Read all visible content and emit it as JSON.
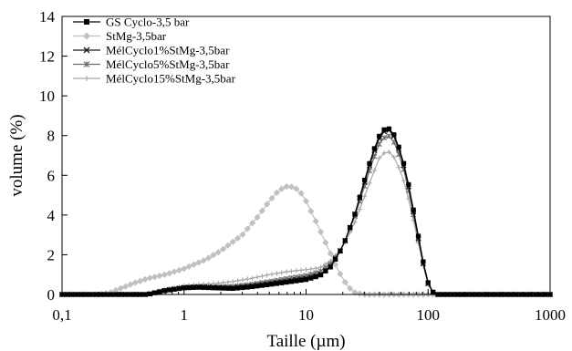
{
  "chart_data": {
    "type": "line",
    "title": "",
    "xlabel": "Taille (µm)",
    "ylabel": "volume (%)",
    "x_scale": "log",
    "xlim": [
      0.1,
      1000
    ],
    "ylim": [
      0,
      14
    ],
    "x_ticks": [
      0.1,
      1,
      10,
      100,
      1000
    ],
    "x_tick_labels": [
      "0,1",
      "1",
      "10",
      "100",
      "1000"
    ],
    "y_ticks": [
      0,
      2,
      4,
      6,
      8,
      10,
      12,
      14
    ],
    "y_tick_labels": [
      "0",
      "2",
      "4",
      "6",
      "8",
      "10",
      "12",
      "14"
    ],
    "grid": false,
    "legend_position": "top-left",
    "series": [
      {
        "name": "GS Cyclo-3,5 bar",
        "color": "#000000",
        "marker": "square",
        "points": [
          [
            0.1,
            0
          ],
          [
            0.5,
            0
          ],
          [
            0.7,
            0.2
          ],
          [
            1,
            0.33
          ],
          [
            1.3,
            0.36
          ],
          [
            1.8,
            0.33
          ],
          [
            2.5,
            0.3
          ],
          [
            3.5,
            0.38
          ],
          [
            5,
            0.5
          ],
          [
            7,
            0.62
          ],
          [
            10,
            0.75
          ],
          [
            13,
            0.95
          ],
          [
            16,
            1.4
          ],
          [
            20,
            2.4
          ],
          [
            25,
            4.0
          ],
          [
            30,
            5.7
          ],
          [
            35,
            7.1
          ],
          [
            40,
            8.0
          ],
          [
            45,
            8.4
          ],
          [
            50,
            8.3
          ],
          [
            55,
            7.8
          ],
          [
            62,
            6.8
          ],
          [
            70,
            5.4
          ],
          [
            80,
            3.5
          ],
          [
            90,
            1.8
          ],
          [
            100,
            0.6
          ],
          [
            110,
            0.1
          ],
          [
            120,
            0
          ],
          [
            200,
            0
          ],
          [
            1000,
            0
          ]
        ]
      },
      {
        "name": "StMg-3,5bar",
        "color": "#c0c0c0",
        "marker": "diamond",
        "points": [
          [
            0.1,
            0
          ],
          [
            0.2,
            0
          ],
          [
            0.25,
            0.1
          ],
          [
            0.3,
            0.3
          ],
          [
            0.4,
            0.6
          ],
          [
            0.5,
            0.8
          ],
          [
            0.7,
            1.0
          ],
          [
            1,
            1.3
          ],
          [
            1.5,
            1.75
          ],
          [
            2,
            2.2
          ],
          [
            3,
            3.0
          ],
          [
            4,
            3.9
          ],
          [
            5,
            4.7
          ],
          [
            6,
            5.25
          ],
          [
            7,
            5.45
          ],
          [
            8,
            5.4
          ],
          [
            9,
            5.15
          ],
          [
            10,
            4.7
          ],
          [
            12,
            3.7
          ],
          [
            14,
            2.8
          ],
          [
            16,
            2.0
          ],
          [
            18,
            1.3
          ],
          [
            20,
            0.8
          ],
          [
            22,
            0.4
          ],
          [
            25,
            0.1
          ],
          [
            30,
            0
          ],
          [
            100,
            0
          ],
          [
            1000,
            0
          ]
        ]
      },
      {
        "name": "MélCyclo1%StMg-3,5bar",
        "color": "#1a1a1a",
        "marker": "x",
        "points": [
          [
            0.1,
            0
          ],
          [
            0.5,
            0
          ],
          [
            0.7,
            0.2
          ],
          [
            1,
            0.35
          ],
          [
            1.3,
            0.38
          ],
          [
            1.8,
            0.35
          ],
          [
            2.5,
            0.33
          ],
          [
            3.5,
            0.42
          ],
          [
            5,
            0.55
          ],
          [
            7,
            0.68
          ],
          [
            10,
            0.82
          ],
          [
            13,
            1.0
          ],
          [
            16,
            1.45
          ],
          [
            20,
            2.4
          ],
          [
            25,
            4.0
          ],
          [
            30,
            5.6
          ],
          [
            35,
            7.0
          ],
          [
            40,
            7.9
          ],
          [
            45,
            8.3
          ],
          [
            50,
            8.25
          ],
          [
            55,
            7.7
          ],
          [
            62,
            6.7
          ],
          [
            70,
            5.3
          ],
          [
            80,
            3.4
          ],
          [
            90,
            1.7
          ],
          [
            100,
            0.55
          ],
          [
            110,
            0.1
          ],
          [
            120,
            0
          ],
          [
            200,
            0
          ],
          [
            1000,
            0
          ]
        ]
      },
      {
        "name": "MélCyclo5%StMg-3,5bar",
        "color": "#6e6e6e",
        "marker": "star",
        "points": [
          [
            0.1,
            0
          ],
          [
            0.5,
            0
          ],
          [
            0.7,
            0.2
          ],
          [
            1,
            0.35
          ],
          [
            1.3,
            0.4
          ],
          [
            1.8,
            0.38
          ],
          [
            2.5,
            0.4
          ],
          [
            3.5,
            0.5
          ],
          [
            5,
            0.65
          ],
          [
            7,
            0.8
          ],
          [
            10,
            0.95
          ],
          [
            13,
            1.15
          ],
          [
            16,
            1.55
          ],
          [
            20,
            2.4
          ],
          [
            25,
            3.9
          ],
          [
            30,
            5.4
          ],
          [
            35,
            6.7
          ],
          [
            40,
            7.6
          ],
          [
            45,
            8.0
          ],
          [
            50,
            7.95
          ],
          [
            55,
            7.4
          ],
          [
            62,
            6.5
          ],
          [
            70,
            5.1
          ],
          [
            80,
            3.3
          ],
          [
            90,
            1.7
          ],
          [
            100,
            0.55
          ],
          [
            110,
            0.1
          ],
          [
            120,
            0
          ],
          [
            200,
            0
          ],
          [
            1000,
            0
          ]
        ]
      },
      {
        "name": "MélCyclo15%StMg-3,5bar",
        "color": "#a8a8a8",
        "marker": "plus",
        "points": [
          [
            0.1,
            0
          ],
          [
            0.5,
            0
          ],
          [
            0.7,
            0.25
          ],
          [
            1,
            0.45
          ],
          [
            1.3,
            0.5
          ],
          [
            1.8,
            0.55
          ],
          [
            2.5,
            0.65
          ],
          [
            3.5,
            0.8
          ],
          [
            5,
            1.0
          ],
          [
            7,
            1.15
          ],
          [
            10,
            1.25
          ],
          [
            13,
            1.35
          ],
          [
            16,
            1.7
          ],
          [
            20,
            2.4
          ],
          [
            25,
            3.6
          ],
          [
            30,
            4.9
          ],
          [
            35,
            6.0
          ],
          [
            40,
            6.9
          ],
          [
            45,
            7.2
          ],
          [
            50,
            7.15
          ],
          [
            55,
            6.7
          ],
          [
            62,
            5.9
          ],
          [
            70,
            4.7
          ],
          [
            80,
            3.1
          ],
          [
            90,
            1.6
          ],
          [
            100,
            0.5
          ],
          [
            110,
            0.1
          ],
          [
            120,
            0
          ],
          [
            200,
            0
          ],
          [
            1000,
            0
          ]
        ]
      }
    ]
  }
}
